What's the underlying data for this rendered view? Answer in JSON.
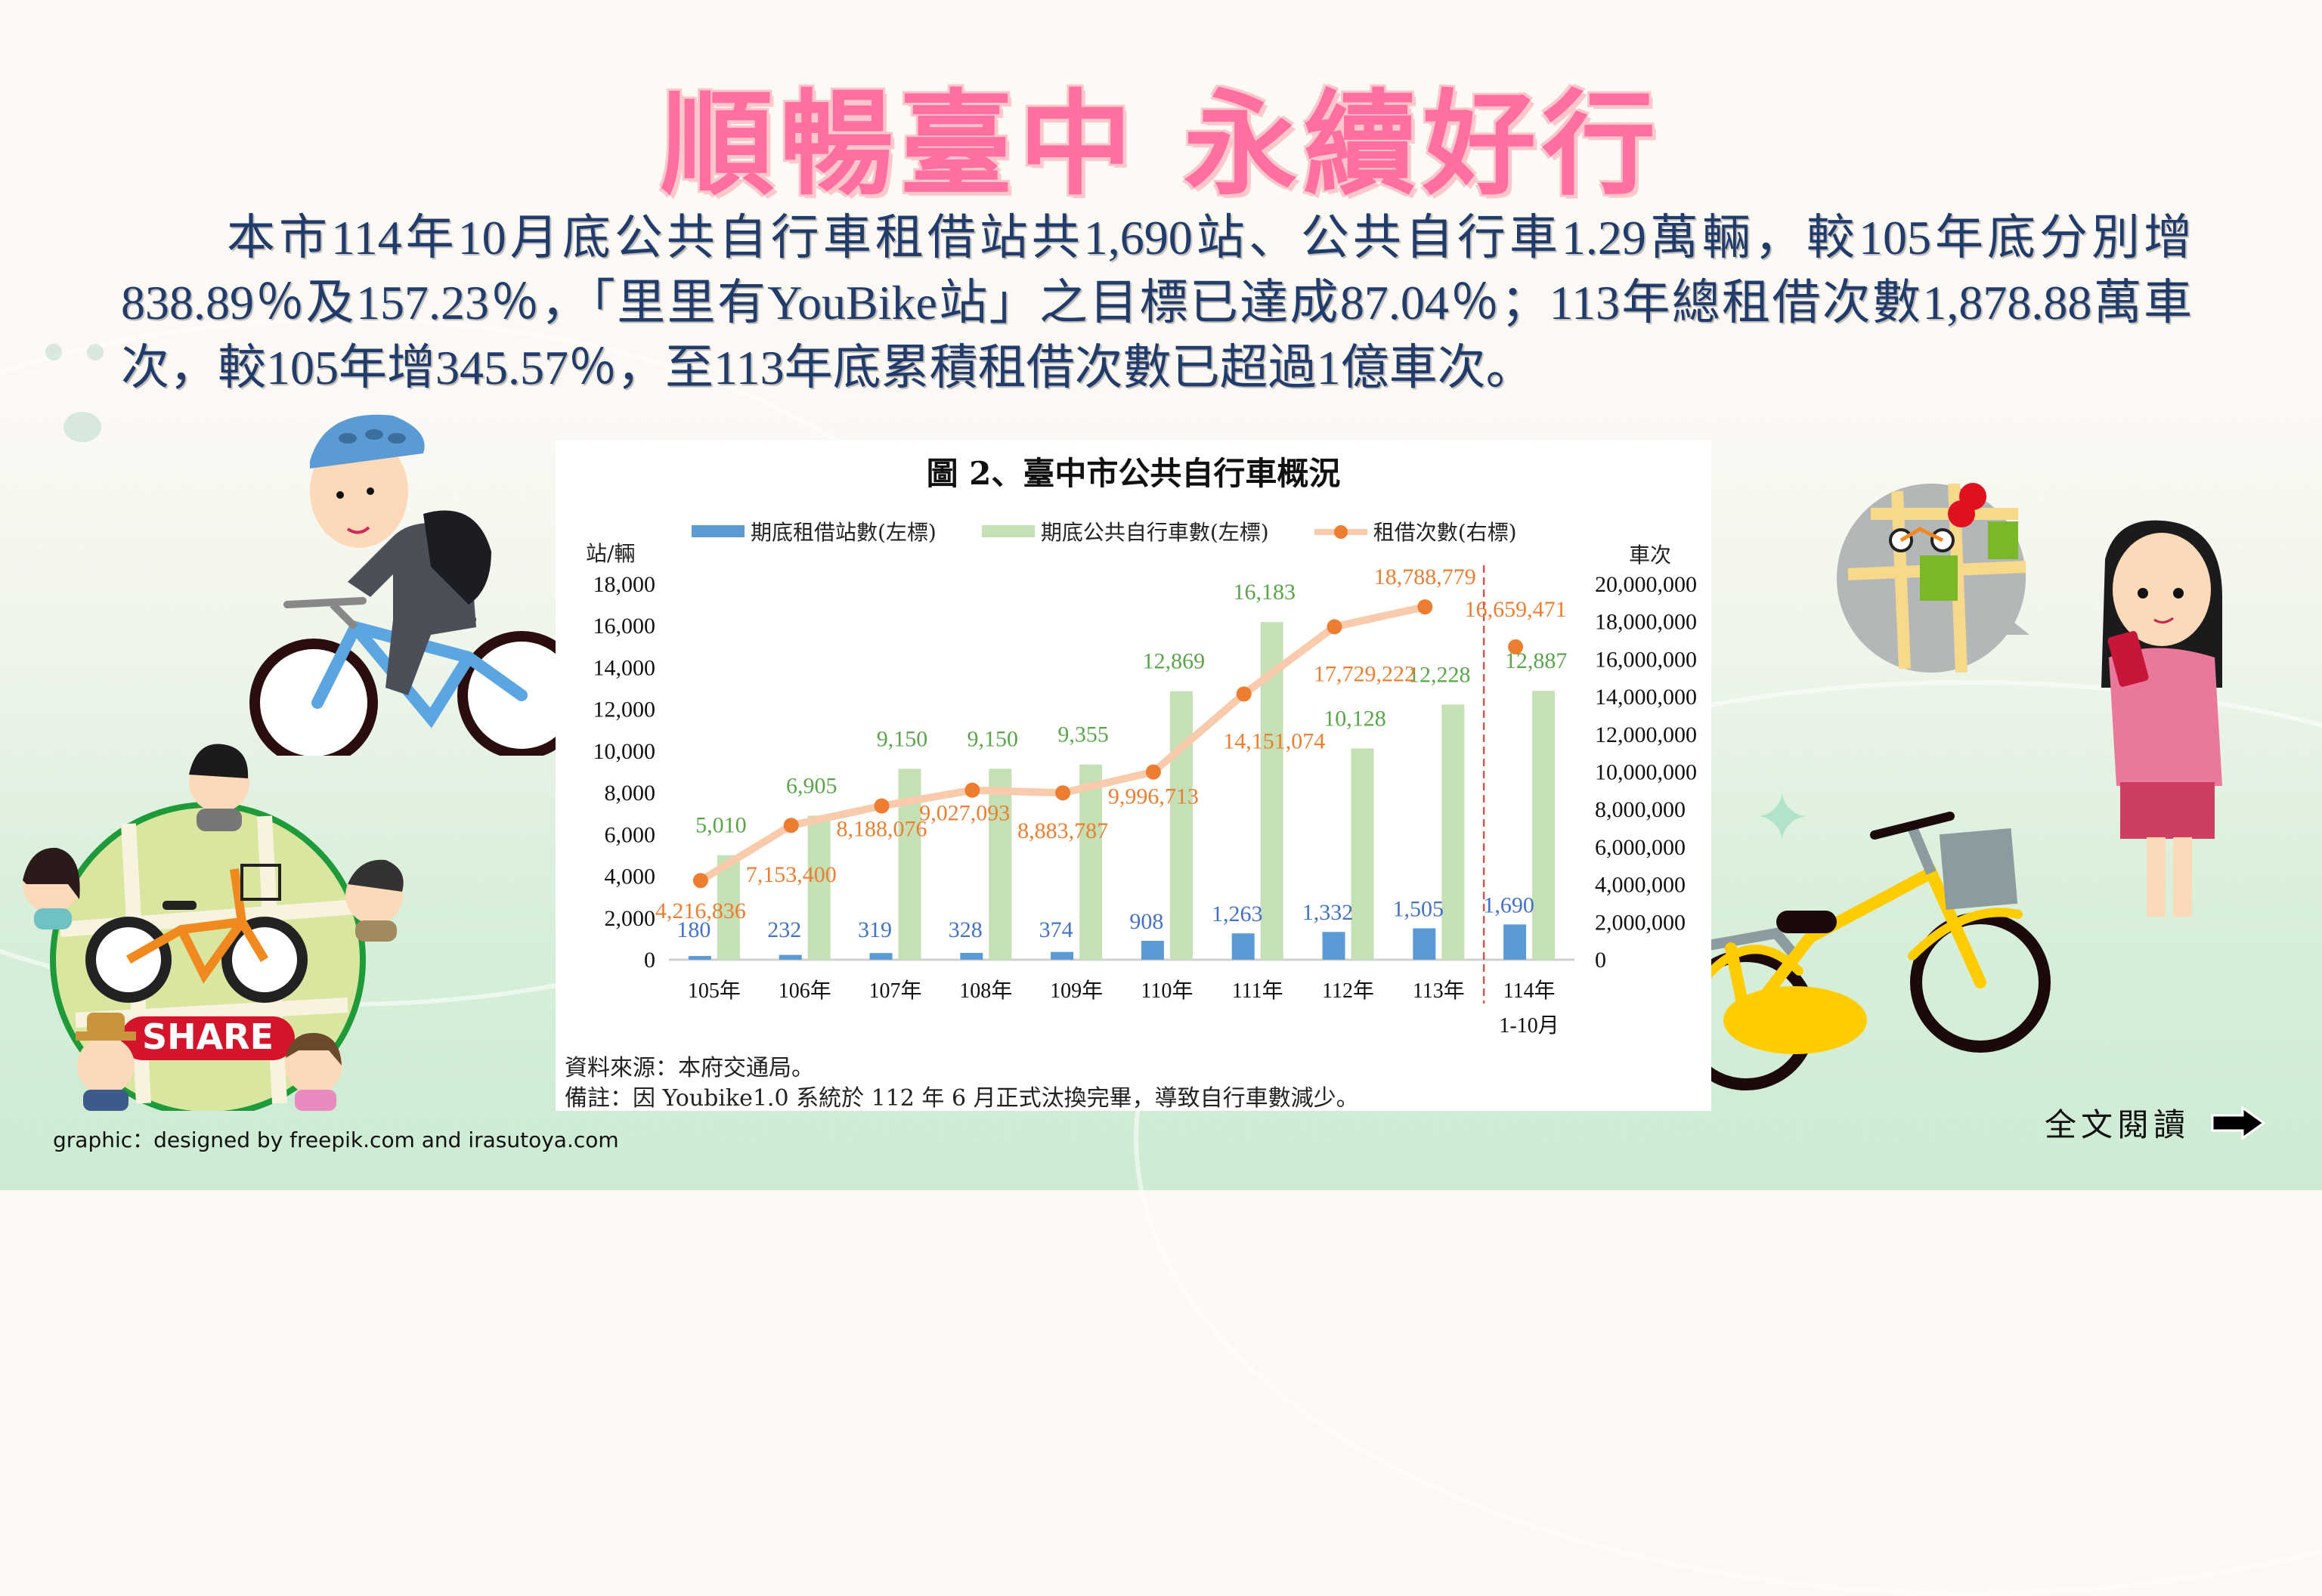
{
  "title": "順暢臺中 永續好行",
  "summary": "本市114年10月底公共自行車租借站共1,690站、公共自行車1.29萬輛，較105年底分別增838.89％及157.23％，「里里有YouBike站」之目標已達成87.04％；113年總租借次數1,878.88萬車次，較105年增345.57％，至113年底累積租借次數已超過1億車次。",
  "chart": {
    "title": "圖 2、臺中市公共自行車概況",
    "unit_left": "站/輛",
    "unit_right": "車次",
    "legend": [
      {
        "label": "期底租借站數(左標)",
        "color": "#5b9bd5"
      },
      {
        "label": "期底公共自行車數(左標)",
        "color": "#c5e0b4"
      },
      {
        "label": "租借次數(右標)",
        "color": "#ed7d31"
      }
    ],
    "source": "資料來源：本府交通局。",
    "note": "備註：因 Youbike1.0 系統於 112 年 6 月正式汰換完畢，導致自行車數減少。"
  },
  "chart_data": {
    "type": "bar",
    "title": "圖 2、臺中市公共自行車概況",
    "categories": [
      "105年",
      "106年",
      "107年",
      "108年",
      "109年",
      "110年",
      "111年",
      "112年",
      "113年",
      "114年\n1-10月"
    ],
    "series": [
      {
        "name": "期底租借站數(左標)",
        "type": "bar",
        "axis": "left",
        "color": "#5b9bd5",
        "values": [
          180,
          232,
          319,
          328,
          374,
          908,
          1263,
          1332,
          1505,
          1690
        ]
      },
      {
        "name": "期底公共自行車數(左標)",
        "type": "bar",
        "axis": "left",
        "color": "#c5e0b4",
        "values": [
          5010,
          6905,
          9150,
          9150,
          9355,
          12869,
          16183,
          10128,
          12228,
          12887
        ]
      },
      {
        "name": "租借次數(右標)",
        "type": "line",
        "axis": "right",
        "color": "#ed7d31",
        "values": [
          4216836,
          7153400,
          8188076,
          9027093,
          8883787,
          9996713,
          14151074,
          17729222,
          18788779,
          16659471
        ]
      }
    ],
    "ylabel_left": "站/輛",
    "ylabel_right": "車次",
    "ylim_left": [
      0,
      18000
    ],
    "yticks_left": [
      0,
      2000,
      4000,
      6000,
      8000,
      10000,
      12000,
      14000,
      16000,
      18000
    ],
    "ylim_right": [
      0,
      20000000
    ],
    "yticks_right": [
      0,
      2000000,
      4000000,
      6000000,
      8000000,
      10000000,
      12000000,
      14000000,
      16000000,
      18000000,
      20000000
    ],
    "legend_position": "top",
    "grid": false,
    "annotations": [
      "Dashed red separator between 113年 and 114年 1-10月"
    ]
  },
  "footer": {
    "credit": "graphic：designed by freepik.com and irasutoya.com",
    "read_more": "全文閱讀"
  },
  "illustrations": {
    "share_badge": "SHARE"
  }
}
